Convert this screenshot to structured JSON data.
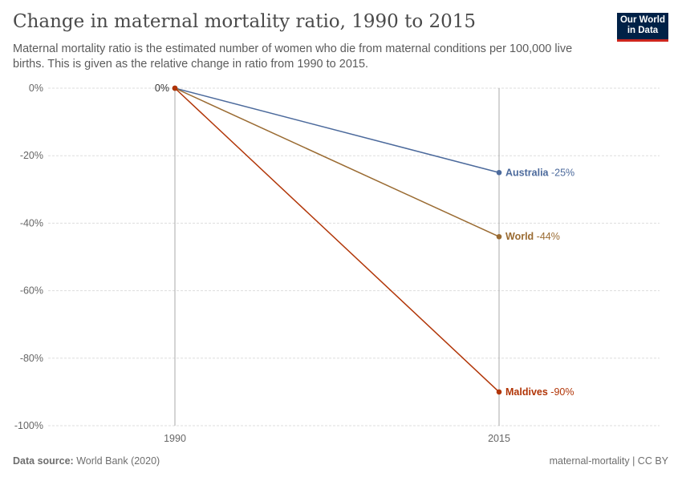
{
  "title": "Change in maternal mortality ratio, 1990 to 2015",
  "subtitle": "Maternal mortality ratio is the estimated number of women who die from maternal conditions per 100,000 live births. This is given as the relative change in ratio from 1990 to 2015.",
  "logo": {
    "line1": "Our World",
    "line2": "in Data"
  },
  "footer": {
    "source_label": "Data source:",
    "source": "World Bank (2020)",
    "right": "maternal-mortality | CC BY"
  },
  "chart_data": {
    "type": "line",
    "x": [
      1990,
      2015
    ],
    "x_tick_labels": [
      "1990",
      "2015"
    ],
    "y_ticks": [
      0,
      -20,
      -40,
      -60,
      -80,
      -100
    ],
    "y_tick_labels": [
      "0%",
      "-20%",
      "-40%",
      "-60%",
      "-80%",
      "-100%"
    ],
    "ylim": [
      -100,
      0
    ],
    "grid": true,
    "start_label": "0%",
    "series": [
      {
        "name": "Australia",
        "values": [
          0,
          -25
        ],
        "end_label": "-25%",
        "color": "#4c6a9c"
      },
      {
        "name": "World",
        "values": [
          0,
          -44
        ],
        "end_label": "-44%",
        "color": "#9a6b32"
      },
      {
        "name": "Maldives",
        "values": [
          0,
          -90
        ],
        "end_label": "-90%",
        "color": "#b13507"
      }
    ]
  }
}
